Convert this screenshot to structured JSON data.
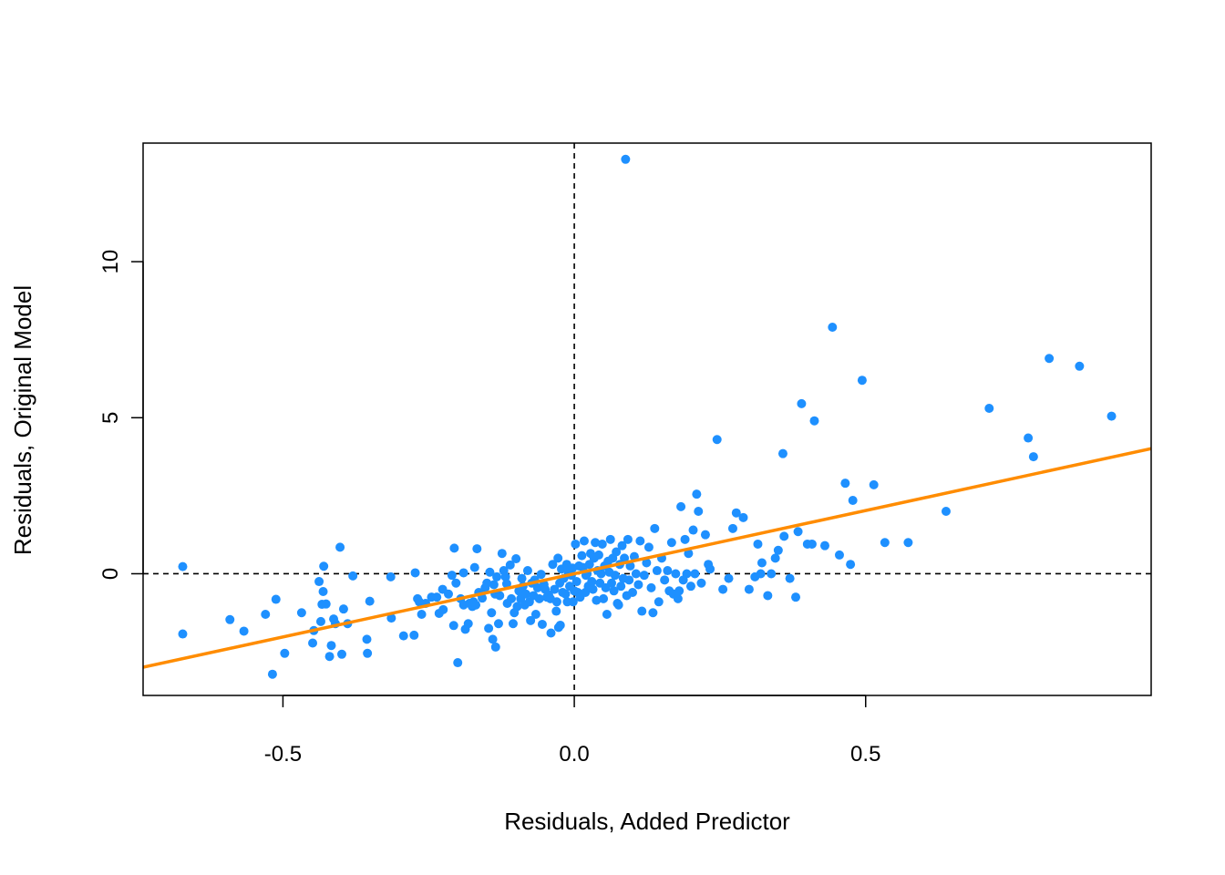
{
  "chart_data": {
    "type": "scatter",
    "title": "",
    "xlabel": "Residuals, Added Predictor",
    "ylabel": "Residuals, Original Model",
    "xlim": [
      -0.74,
      0.99
    ],
    "ylim": [
      -3.9,
      13.8
    ],
    "x_ticks": [
      -0.5,
      0.0,
      0.5
    ],
    "x_tick_labels": [
      "-0.5",
      "0.0",
      "0.5"
    ],
    "y_ticks": [
      0,
      5,
      10
    ],
    "y_tick_labels": [
      "0",
      "5",
      "10"
    ],
    "grid": false,
    "reference_lines": {
      "h": 0,
      "v": 0,
      "style": "dashed",
      "color": "#000000"
    },
    "fit_line": {
      "color": "#ff8c00",
      "intercept": 0.0,
      "slope": 4.05
    },
    "point_color": "#1e90ff",
    "points": [
      [
        -0.672,
        0.23
      ],
      [
        -0.672,
        -1.93
      ],
      [
        -0.591,
        -1.47
      ],
      [
        -0.567,
        -1.84
      ],
      [
        -0.53,
        -1.3
      ],
      [
        -0.512,
        -0.82
      ],
      [
        -0.518,
        -3.22
      ],
      [
        -0.497,
        -2.55
      ],
      [
        -0.468,
        -1.25
      ],
      [
        -0.449,
        -2.22
      ],
      [
        -0.447,
        -1.82
      ],
      [
        -0.438,
        -0.25
      ],
      [
        -0.435,
        -1.53
      ],
      [
        -0.433,
        -0.98
      ],
      [
        -0.431,
        -0.57
      ],
      [
        -0.43,
        0.24
      ],
      [
        -0.426,
        -0.97
      ],
      [
        -0.42,
        -2.65
      ],
      [
        -0.417,
        -2.3
      ],
      [
        -0.413,
        -1.45
      ],
      [
        -0.41,
        -1.6
      ],
      [
        -0.402,
        0.85
      ],
      [
        -0.399,
        -2.58
      ],
      [
        -0.396,
        -1.13
      ],
      [
        -0.389,
        -1.6
      ],
      [
        -0.38,
        -0.07
      ],
      [
        -0.356,
        -2.1
      ],
      [
        -0.355,
        -2.55
      ],
      [
        -0.351,
        -0.88
      ],
      [
        -0.315,
        -0.1
      ],
      [
        -0.314,
        -1.42
      ],
      [
        -0.293,
        -1.99
      ],
      [
        -0.275,
        -1.97
      ],
      [
        -0.273,
        0.03
      ],
      [
        -0.269,
        -0.8
      ],
      [
        -0.266,
        -0.9
      ],
      [
        -0.262,
        -1.3
      ],
      [
        -0.255,
        -0.95
      ],
      [
        -0.245,
        -0.75
      ],
      [
        -0.236,
        -0.75
      ],
      [
        -0.232,
        -1.27
      ],
      [
        -0.226,
        -0.5
      ],
      [
        -0.225,
        -1.15
      ],
      [
        -0.216,
        -0.65
      ],
      [
        -0.21,
        -0.05
      ],
      [
        -0.207,
        -1.66
      ],
      [
        -0.206,
        0.82
      ],
      [
        -0.203,
        -0.3
      ],
      [
        -0.2,
        -2.85
      ],
      [
        -0.195,
        -0.8
      ],
      [
        -0.19,
        -1.0
      ],
      [
        -0.19,
        0.03
      ],
      [
        -0.187,
        -1.78
      ],
      [
        -0.182,
        -1.6
      ],
      [
        -0.18,
        -0.95
      ],
      [
        -0.175,
        -1.05
      ],
      [
        -0.173,
        -0.9
      ],
      [
        -0.171,
        0.2
      ],
      [
        -0.169,
        -1.0
      ],
      [
        -0.167,
        0.8
      ],
      [
        -0.164,
        -0.6
      ],
      [
        -0.158,
        -0.78
      ],
      [
        -0.153,
        -0.45
      ],
      [
        -0.15,
        -0.3
      ],
      [
        -0.147,
        -1.75
      ],
      [
        -0.145,
        0.05
      ],
      [
        -0.142,
        -1.25
      ],
      [
        -0.14,
        -2.1
      ],
      [
        -0.138,
        -0.35
      ],
      [
        -0.136,
        -0.65
      ],
      [
        -0.135,
        -2.35
      ],
      [
        -0.133,
        -0.1
      ],
      [
        -0.13,
        -1.6
      ],
      [
        -0.128,
        -0.7
      ],
      [
        -0.124,
        0.65
      ],
      [
        -0.121,
        0.1
      ],
      [
        -0.118,
        -0.1
      ],
      [
        -0.116,
        -0.32
      ],
      [
        -0.115,
        -0.95
      ],
      [
        -0.11,
        0.28
      ],
      [
        -0.108,
        -0.8
      ],
      [
        -0.105,
        -1.6
      ],
      [
        -0.103,
        -1.25
      ],
      [
        -0.1,
        0.48
      ],
      [
        -0.098,
        -1.05
      ],
      [
        -0.095,
        -0.55
      ],
      [
        -0.092,
        -0.8
      ],
      [
        -0.09,
        -0.15
      ],
      [
        -0.088,
        -0.4
      ],
      [
        -0.085,
        -1.0
      ],
      [
        -0.083,
        -0.65
      ],
      [
        -0.08,
        0.1
      ],
      [
        -0.077,
        -0.9
      ],
      [
        -0.075,
        -1.5
      ],
      [
        -0.073,
        -0.3
      ],
      [
        -0.07,
        -0.7
      ],
      [
        -0.068,
        -0.2
      ],
      [
        -0.066,
        -1.3
      ],
      [
        -0.063,
        -0.45
      ],
      [
        -0.06,
        -0.8
      ],
      [
        -0.057,
        -0.02
      ],
      [
        -0.055,
        -1.62
      ],
      [
        -0.052,
        -0.35
      ],
      [
        -0.05,
        -0.5
      ],
      [
        -0.047,
        -0.75
      ],
      [
        -0.044,
        -0.68
      ],
      [
        -0.041,
        -0.8
      ],
      [
        -0.04,
        -1.9
      ],
      [
        -0.037,
        0.3
      ],
      [
        -0.034,
        -0.5
      ],
      [
        -0.031,
        -1.2
      ],
      [
        -0.03,
        -0.9
      ],
      [
        -0.028,
        0.5
      ],
      [
        -0.027,
        -1.72
      ],
      [
        -0.025,
        -0.3
      ],
      [
        -0.024,
        -1.65
      ],
      [
        -0.022,
        0.15
      ],
      [
        -0.02,
        -0.6
      ],
      [
        -0.018,
        -0.15
      ],
      [
        -0.015,
        -0.65
      ],
      [
        -0.013,
        0.3
      ],
      [
        -0.012,
        -0.9
      ],
      [
        -0.01,
        0.05
      ],
      [
        -0.008,
        -0.4
      ],
      [
        -0.005,
        -0.05
      ],
      [
        -0.003,
        0.18
      ],
      [
        -0.002,
        -0.9
      ],
      [
        0.0,
        -0.55
      ],
      [
        0.002,
        0.95
      ],
      [
        0.004,
        -0.25
      ],
      [
        0.006,
        -0.6
      ],
      [
        0.008,
        0.25
      ],
      [
        0.01,
        -0.75
      ],
      [
        0.013,
        0.58
      ],
      [
        0.015,
        0.2
      ],
      [
        0.017,
        1.05
      ],
      [
        0.019,
        -0.6
      ],
      [
        0.02,
        -0.05
      ],
      [
        0.022,
        0.0
      ],
      [
        0.024,
        -0.4
      ],
      [
        0.026,
        0.3
      ],
      [
        0.028,
        0.65
      ],
      [
        0.03,
        -0.25
      ],
      [
        0.032,
        -0.5
      ],
      [
        0.034,
        0.5
      ],
      [
        0.036,
        1.0
      ],
      [
        0.038,
        -0.85
      ],
      [
        0.04,
        0.1
      ],
      [
        0.042,
        0.6
      ],
      [
        0.044,
        -0.3
      ],
      [
        0.046,
        0.0
      ],
      [
        0.048,
        0.95
      ],
      [
        0.05,
        -0.8
      ],
      [
        0.052,
        0.25
      ],
      [
        0.054,
        -0.45
      ],
      [
        0.056,
        -1.3
      ],
      [
        0.058,
        0.4
      ],
      [
        0.06,
        0.05
      ],
      [
        0.062,
        1.1
      ],
      [
        0.064,
        -0.3
      ],
      [
        0.066,
        0.5
      ],
      [
        0.068,
        -0.55
      ],
      [
        0.07,
        -0.05
      ],
      [
        0.072,
        0.7
      ],
      [
        0.074,
        -0.95
      ],
      [
        0.076,
        -1.0
      ],
      [
        0.078,
        0.3
      ],
      [
        0.08,
        -0.4
      ],
      [
        0.082,
        0.9
      ],
      [
        0.084,
        -0.15
      ],
      [
        0.086,
        0.5
      ],
      [
        0.088,
        13.28
      ],
      [
        0.09,
        -0.7
      ],
      [
        0.092,
        1.1
      ],
      [
        0.094,
        -0.2
      ],
      [
        0.096,
        0.25
      ],
      [
        0.1,
        -0.6
      ],
      [
        0.103,
        0.55
      ],
      [
        0.106,
        0.0
      ],
      [
        0.11,
        -0.35
      ],
      [
        0.113,
        1.05
      ],
      [
        0.116,
        -1.2
      ],
      [
        0.12,
        -0.05
      ],
      [
        0.124,
        0.35
      ],
      [
        0.128,
        0.85
      ],
      [
        0.132,
        -0.45
      ],
      [
        0.135,
        -1.25
      ],
      [
        0.138,
        1.45
      ],
      [
        0.142,
        0.1
      ],
      [
        0.145,
        -0.9
      ],
      [
        0.15,
        0.5
      ],
      [
        0.155,
        -0.2
      ],
      [
        0.16,
        0.1
      ],
      [
        0.163,
        -0.55
      ],
      [
        0.167,
        1.0
      ],
      [
        0.17,
        -0.65
      ],
      [
        0.174,
        0.0
      ],
      [
        0.178,
        -0.8
      ],
      [
        0.18,
        -0.55
      ],
      [
        0.183,
        2.15
      ],
      [
        0.187,
        -0.2
      ],
      [
        0.19,
        1.1
      ],
      [
        0.193,
        0.0
      ],
      [
        0.196,
        0.65
      ],
      [
        0.2,
        -0.4
      ],
      [
        0.204,
        1.4
      ],
      [
        0.207,
        0.0
      ],
      [
        0.21,
        2.55
      ],
      [
        0.213,
        2.0
      ],
      [
        0.218,
        -0.3
      ],
      [
        0.225,
        1.25
      ],
      [
        0.23,
        0.3
      ],
      [
        0.233,
        0.15
      ],
      [
        0.245,
        4.3
      ],
      [
        0.255,
        -0.5
      ],
      [
        0.265,
        -0.15
      ],
      [
        0.272,
        1.45
      ],
      [
        0.278,
        1.95
      ],
      [
        0.29,
        1.8
      ],
      [
        0.3,
        -0.5
      ],
      [
        0.31,
        -0.1
      ],
      [
        0.315,
        0.95
      ],
      [
        0.32,
        0.0
      ],
      [
        0.322,
        0.35
      ],
      [
        0.332,
        -0.7
      ],
      [
        0.338,
        0.0
      ],
      [
        0.345,
        0.5
      ],
      [
        0.35,
        0.75
      ],
      [
        0.358,
        3.85
      ],
      [
        0.36,
        1.2
      ],
      [
        0.37,
        -0.15
      ],
      [
        0.38,
        -0.75
      ],
      [
        0.384,
        1.35
      ],
      [
        0.39,
        5.45
      ],
      [
        0.4,
        0.95
      ],
      [
        0.408,
        0.95
      ],
      [
        0.412,
        4.9
      ],
      [
        0.43,
        0.9
      ],
      [
        0.443,
        7.9
      ],
      [
        0.455,
        0.6
      ],
      [
        0.465,
        2.9
      ],
      [
        0.474,
        0.3
      ],
      [
        0.478,
        2.35
      ],
      [
        0.494,
        6.2
      ],
      [
        0.514,
        2.85
      ],
      [
        0.533,
        1.0
      ],
      [
        0.573,
        1.0
      ],
      [
        0.638,
        2.0
      ],
      [
        0.712,
        5.3
      ],
      [
        0.779,
        4.35
      ],
      [
        0.788,
        3.75
      ],
      [
        0.815,
        6.9
      ],
      [
        0.867,
        6.65
      ],
      [
        0.922,
        5.05
      ]
    ]
  }
}
